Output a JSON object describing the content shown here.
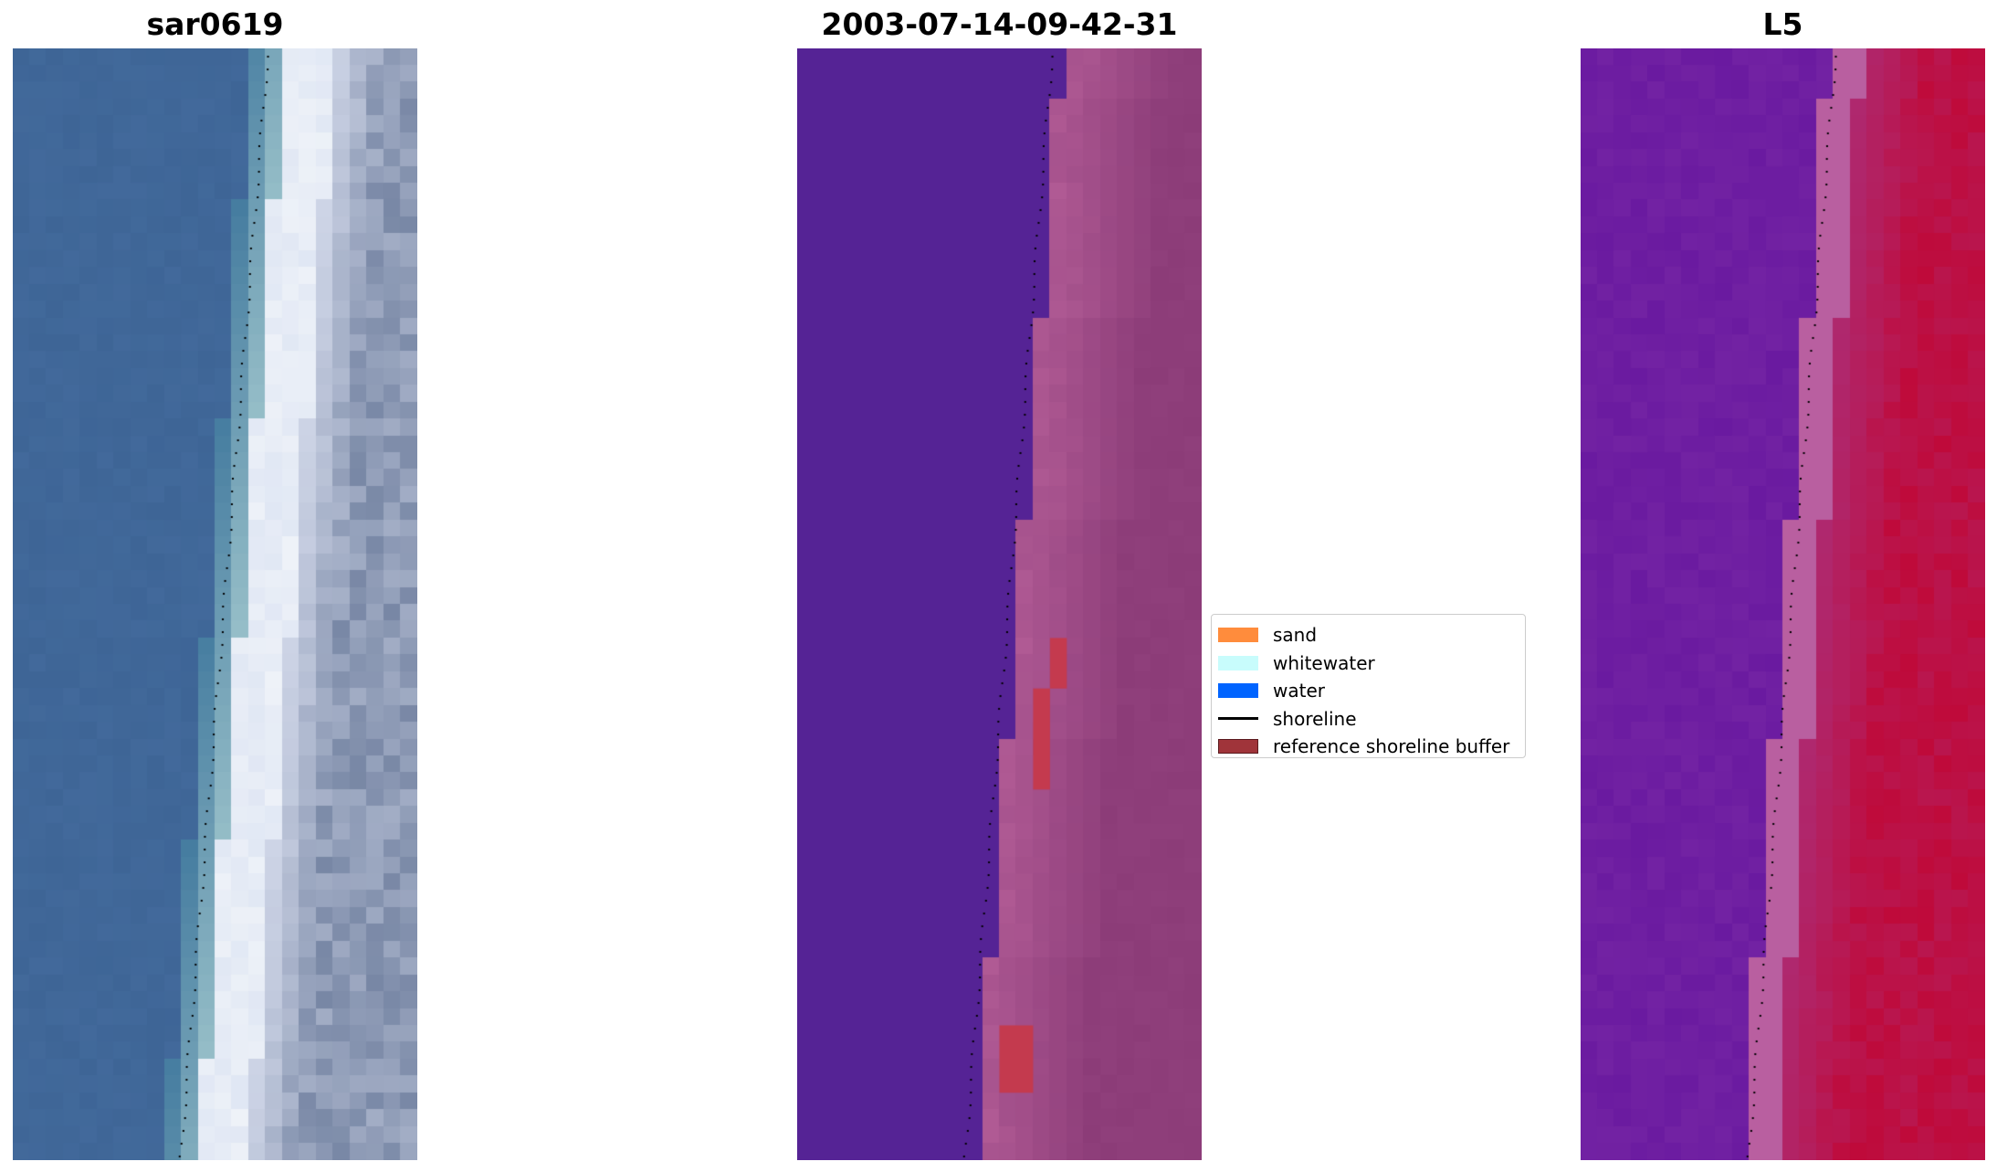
{
  "panels": [
    {
      "id": "rgb",
      "title": "sar0619"
    },
    {
      "id": "classified",
      "title": "2003-07-14-09-42-31"
    },
    {
      "id": "index",
      "title": "L5"
    }
  ],
  "legend": {
    "items": [
      {
        "label": "sand",
        "kind": "patch",
        "color": "#ff8c3c"
      },
      {
        "label": "whitewater",
        "kind": "patch",
        "color": "#c8fcfc"
      },
      {
        "label": "water",
        "kind": "patch",
        "color": "#0064ff"
      },
      {
        "label": "shoreline",
        "kind": "line",
        "color": "#000000"
      },
      {
        "label": "reference shoreline buffer",
        "kind": "patch",
        "color": "#a0343a"
      }
    ]
  },
  "colors": {
    "water_rgb": "#3e6596",
    "whitewater_rgb": "#eef2f8",
    "classified_water": "#552395",
    "classified_land": "#b05a94",
    "buffer_cells": "#c43a4e",
    "index_low": "#6a1aa0",
    "index_high": "#bf0a3a"
  }
}
